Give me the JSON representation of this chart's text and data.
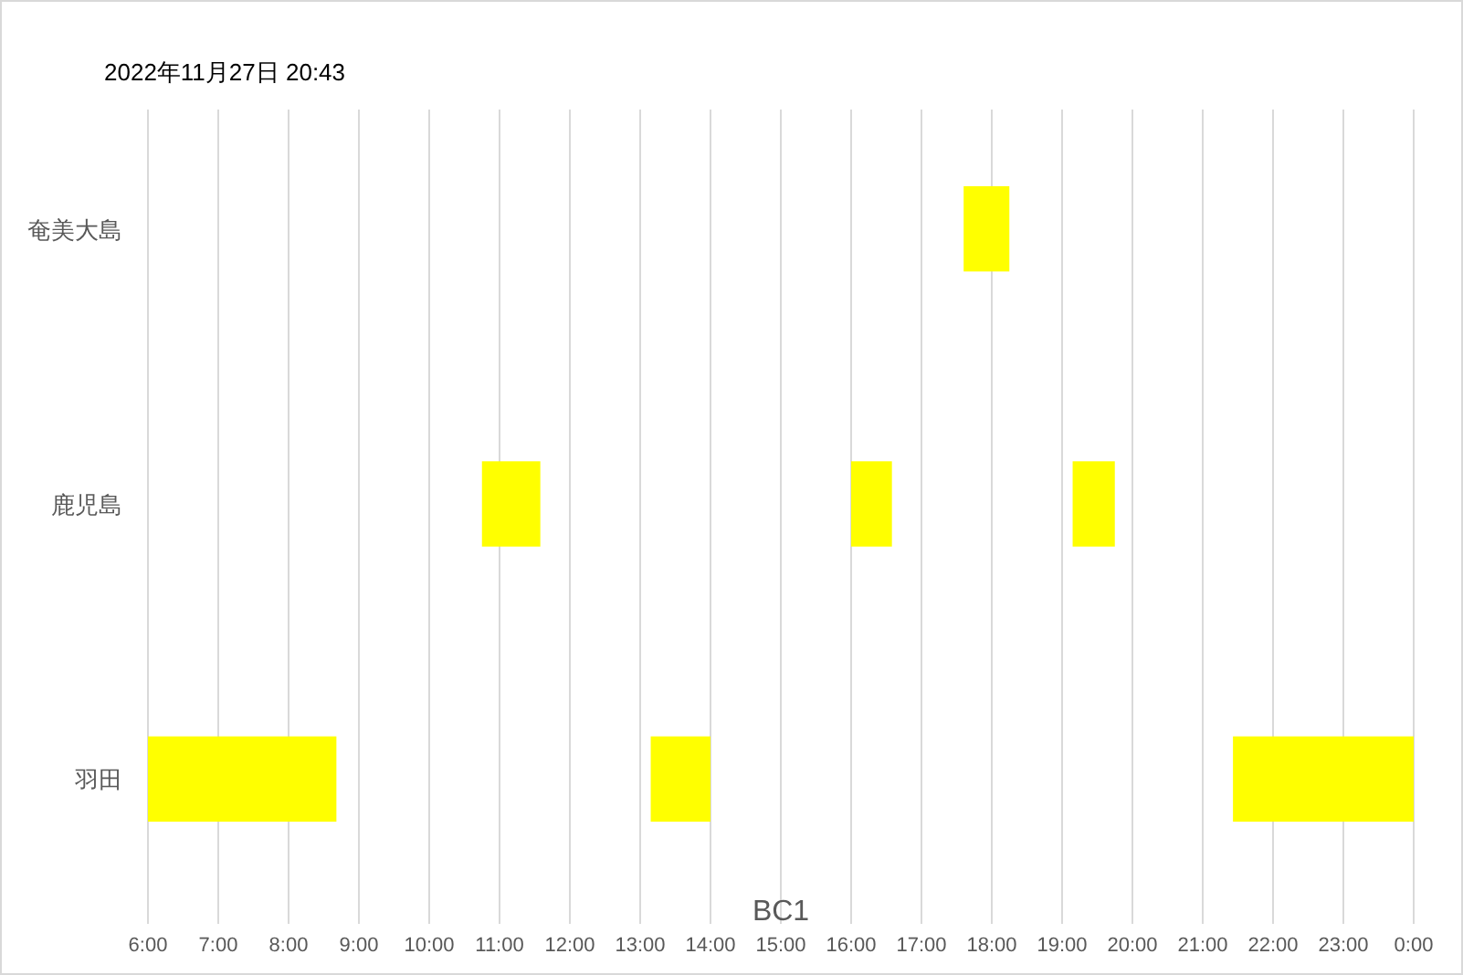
{
  "chart_data": {
    "type": "bar",
    "orientation": "horizontal",
    "title": "2022年11月27日 20:43",
    "xlabel": "BC1",
    "categories": [
      "奄美大島",
      "鹿児島",
      "羽田"
    ],
    "series": [
      {
        "color": "#ffff00",
        "base": [
          17.6,
          10.75,
          6
        ],
        "values": [
          0.65,
          0.83,
          2.68
        ]
      },
      {
        "color": "#ffff00",
        "base": [
          null,
          16.0,
          13.15
        ],
        "values": [
          null,
          0.58,
          0.85
        ]
      },
      {
        "color": "#ffff00",
        "base": [
          null,
          19.15,
          21.43
        ],
        "values": [
          null,
          0.6,
          2.57
        ]
      }
    ],
    "xlim": [
      6,
      24
    ],
    "xticks": [
      {
        "value": 6,
        "label": "6:00"
      },
      {
        "value": 7,
        "label": "7:00"
      },
      {
        "value": 8,
        "label": "8:00"
      },
      {
        "value": 9,
        "label": "9:00"
      },
      {
        "value": 10,
        "label": "10:00"
      },
      {
        "value": 11,
        "label": "11:00"
      },
      {
        "value": 12,
        "label": "12:00"
      },
      {
        "value": 13,
        "label": "13:00"
      },
      {
        "value": 14,
        "label": "14:00"
      },
      {
        "value": 15,
        "label": "15:00"
      },
      {
        "value": 16,
        "label": "16:00"
      },
      {
        "value": 17,
        "label": "17:00"
      },
      {
        "value": 18,
        "label": "18:00"
      },
      {
        "value": 19,
        "label": "19:00"
      },
      {
        "value": 20,
        "label": "20:00"
      },
      {
        "value": 21,
        "label": "21:00"
      },
      {
        "value": 22,
        "label": "22:00"
      },
      {
        "value": 23,
        "label": "23:00"
      },
      {
        "value": 24,
        "label": "0:00"
      }
    ],
    "grid": "x"
  }
}
